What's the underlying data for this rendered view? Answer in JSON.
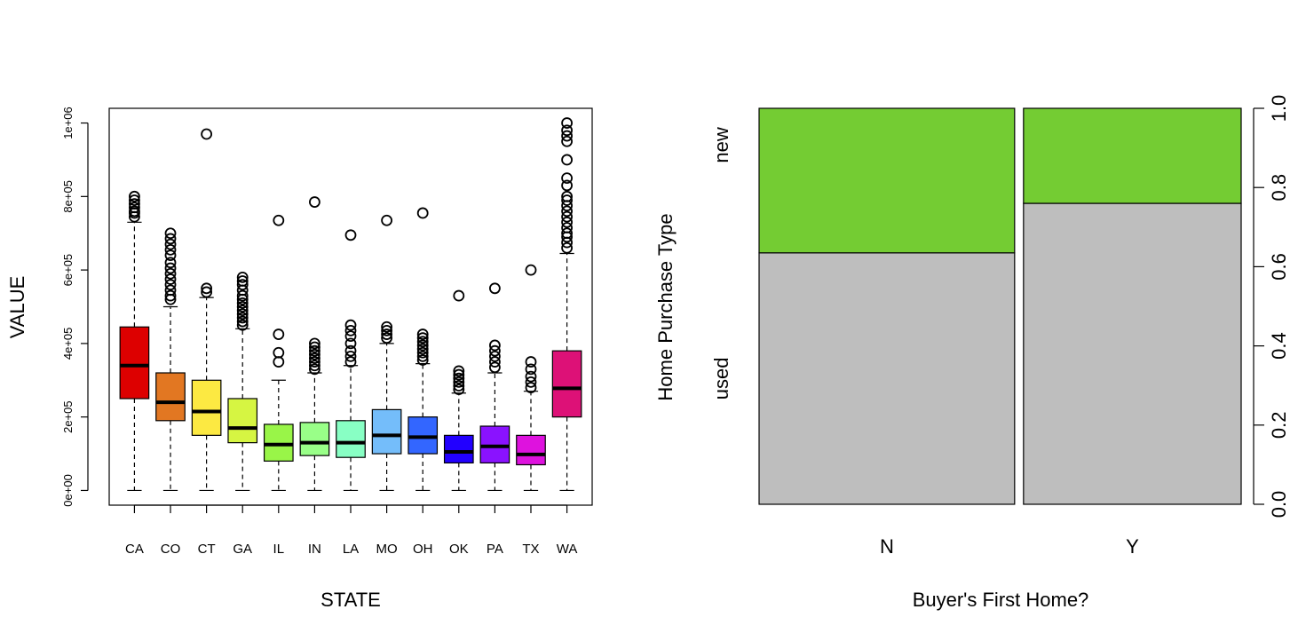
{
  "chart_data": [
    {
      "type": "boxplot",
      "xlabel": "STATE",
      "ylabel": "VALUE",
      "ylim": [
        -40000,
        1040000
      ],
      "y_ticks": [
        0,
        200000,
        400000,
        600000,
        800000,
        1000000
      ],
      "y_tick_labels": [
        "0e+00",
        "2e+05",
        "4e+05",
        "6e+05",
        "8e+05",
        "1e+06"
      ],
      "categories": [
        "CA",
        "CO",
        "CT",
        "GA",
        "IL",
        "IN",
        "LA",
        "MO",
        "OH",
        "OK",
        "PA",
        "TX",
        "WA"
      ],
      "colors": [
        "#dd0000",
        "#e27722",
        "#fce942",
        "#d6f542",
        "#99f548",
        "#99ff88",
        "#88ffc4",
        "#74bdfa",
        "#3366ff",
        "#2200ff",
        "#8a12ff",
        "#de12de",
        "#dd1177"
      ],
      "boxes": [
        {
          "whisker_low": 0,
          "q1": 250000,
          "median": 340000,
          "q3": 445000,
          "whisker_high": 730000,
          "outliers": [
            745000,
            755000,
            760000,
            770000,
            780000,
            790000,
            800000
          ]
        },
        {
          "whisker_low": 0,
          "q1": 190000,
          "median": 240000,
          "q3": 320000,
          "whisker_high": 500000,
          "outliers": [
            520000,
            530000,
            545000,
            560000,
            575000,
            590000,
            605000,
            620000,
            640000,
            655000,
            670000,
            685000,
            700000
          ]
        },
        {
          "whisker_low": 0,
          "q1": 150000,
          "median": 215000,
          "q3": 300000,
          "whisker_high": 525000,
          "outliers": [
            540000,
            550000,
            970000
          ]
        },
        {
          "whisker_low": 0,
          "q1": 130000,
          "median": 170000,
          "q3": 250000,
          "whisker_high": 440000,
          "outliers": [
            450000,
            460000,
            470000,
            480000,
            490000,
            500000,
            510000,
            520000,
            530000,
            545000,
            560000,
            570000,
            580000
          ]
        },
        {
          "whisker_low": 0,
          "q1": 80000,
          "median": 125000,
          "q3": 180000,
          "whisker_high": 300000,
          "outliers": [
            350000,
            375000,
            425000,
            735000
          ]
        },
        {
          "whisker_low": 0,
          "q1": 95000,
          "median": 130000,
          "q3": 185000,
          "whisker_high": 320000,
          "outliers": [
            330000,
            340000,
            350000,
            360000,
            370000,
            380000,
            390000,
            400000,
            785000
          ]
        },
        {
          "whisker_low": 0,
          "q1": 90000,
          "median": 130000,
          "q3": 190000,
          "whisker_high": 340000,
          "outliers": [
            350000,
            365000,
            380000,
            400000,
            420000,
            435000,
            450000,
            695000
          ]
        },
        {
          "whisker_low": 0,
          "q1": 100000,
          "median": 150000,
          "q3": 220000,
          "whisker_high": 400000,
          "outliers": [
            415000,
            425000,
            435000,
            445000,
            735000
          ]
        },
        {
          "whisker_low": 0,
          "q1": 100000,
          "median": 145000,
          "q3": 200000,
          "whisker_high": 345000,
          "outliers": [
            355000,
            365000,
            375000,
            385000,
            395000,
            405000,
            415000,
            425000,
            755000
          ]
        },
        {
          "whisker_low": 0,
          "q1": 75000,
          "median": 105000,
          "q3": 150000,
          "whisker_high": 265000,
          "outliers": [
            275000,
            285000,
            295000,
            305000,
            315000,
            325000,
            530000
          ]
        },
        {
          "whisker_low": 0,
          "q1": 75000,
          "median": 120000,
          "q3": 175000,
          "whisker_high": 320000,
          "outliers": [
            335000,
            350000,
            365000,
            380000,
            395000,
            550000
          ]
        },
        {
          "whisker_low": 0,
          "q1": 70000,
          "median": 98000,
          "q3": 150000,
          "whisker_high": 270000,
          "outliers": [
            280000,
            295000,
            310000,
            330000,
            350000,
            600000
          ]
        },
        {
          "whisker_low": 0,
          "q1": 200000,
          "median": 278000,
          "q3": 380000,
          "whisker_high": 645000,
          "outliers": [
            660000,
            675000,
            690000,
            700000,
            715000,
            730000,
            745000,
            760000,
            775000,
            790000,
            800000,
            830000,
            850000,
            900000,
            950000,
            965000,
            980000,
            1000000
          ]
        }
      ]
    },
    {
      "type": "spineplot",
      "xlabel": "Buyer's First Home?",
      "ylabel": "Home Purchase Type",
      "categories": [
        "N",
        "Y"
      ],
      "category_widths": [
        0.54,
        0.46
      ],
      "levels": [
        "used",
        "new"
      ],
      "colors": {
        "used": "#bebebe",
        "new": "#74cc33"
      },
      "used_fraction": [
        0.635,
        0.76
      ],
      "right_axis_ticks": [
        0.0,
        0.2,
        0.4,
        0.6,
        0.8,
        1.0
      ],
      "right_axis_labels": [
        "0.0",
        "0.2",
        "0.4",
        "0.6",
        "0.8",
        "1.0"
      ]
    }
  ]
}
